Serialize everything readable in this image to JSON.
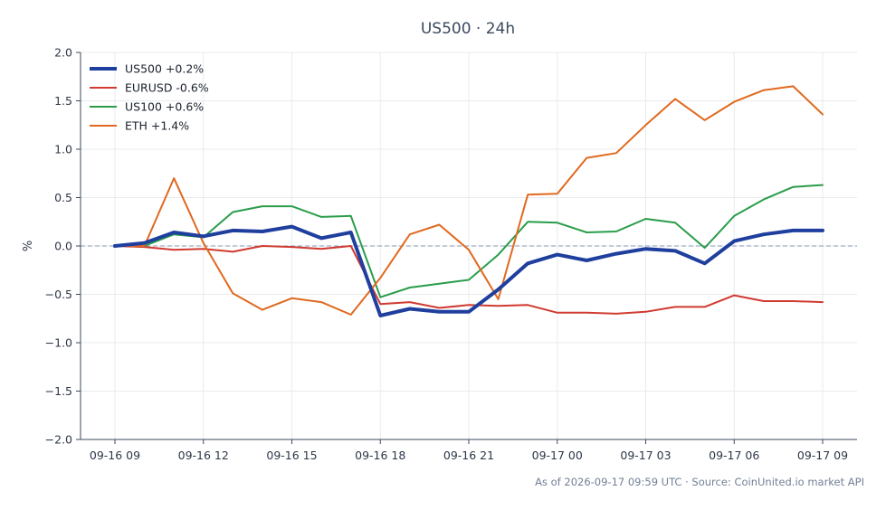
{
  "chart_data": {
    "type": "line",
    "title": "US500 · 24h",
    "ylabel": "%",
    "xlabel": "",
    "ylim": [
      -2.0,
      2.0
    ],
    "yticks": [
      -2.0,
      -1.5,
      -1.0,
      -0.5,
      0.0,
      0.5,
      1.0,
      1.5,
      2.0
    ],
    "ytick_labels": [
      "−2.0",
      "−1.5",
      "−1.0",
      "−0.5",
      "0.0",
      "0.5",
      "1.0",
      "1.5",
      "2.0"
    ],
    "x": [
      0,
      1,
      2,
      3,
      4,
      5,
      6,
      7,
      8,
      9,
      10,
      11,
      12,
      13,
      14,
      15,
      16,
      17,
      18,
      19,
      20,
      21,
      22,
      23,
      24
    ],
    "xticks": [
      0,
      3,
      6,
      9,
      12,
      15,
      18,
      21,
      24
    ],
    "xtick_labels": [
      "09-16 09",
      "09-16 12",
      "09-16 15",
      "09-16 18",
      "09-16 21",
      "09-17 00",
      "09-17 03",
      "09-17 06",
      "09-17 09"
    ],
    "grid": true,
    "zero_line": true,
    "legend_position": "top-left",
    "series": [
      {
        "name": "US500 +0.2%",
        "color": "#1f3f9e",
        "width": 4,
        "values": [
          0.0,
          0.03,
          0.14,
          0.1,
          0.16,
          0.15,
          0.2,
          0.08,
          0.14,
          -0.72,
          -0.65,
          -0.68,
          -0.68,
          -0.45,
          -0.18,
          -0.09,
          -0.15,
          -0.08,
          -0.03,
          -0.05,
          -0.18,
          0.05,
          0.12,
          0.16,
          0.16
        ]
      },
      {
        "name": "EURUSD -0.6%",
        "color": "#d03a30",
        "width": 2,
        "values": [
          0.0,
          -0.01,
          -0.04,
          -0.03,
          -0.06,
          0.0,
          -0.01,
          -0.03,
          0.0,
          -0.6,
          -0.58,
          -0.64,
          -0.61,
          -0.62,
          -0.61,
          -0.69,
          -0.69,
          -0.7,
          -0.68,
          -0.63,
          -0.63,
          -0.51,
          -0.57,
          -0.57,
          -0.58
        ]
      },
      {
        "name": "US100 +0.6%",
        "color": "#2a9d4a",
        "width": 2,
        "values": [
          0.0,
          0.0,
          0.12,
          0.09,
          0.35,
          0.41,
          0.41,
          0.3,
          0.31,
          -0.53,
          -0.43,
          -0.39,
          -0.35,
          -0.09,
          0.25,
          0.24,
          0.14,
          0.15,
          0.28,
          0.24,
          -0.02,
          0.31,
          0.48,
          0.61,
          0.63
        ]
      },
      {
        "name": "ETH +1.4%",
        "color": "#e0691f",
        "width": 2,
        "values": [
          0.0,
          0.0,
          0.7,
          0.03,
          -0.49,
          -0.66,
          -0.54,
          -0.58,
          -0.71,
          -0.33,
          0.12,
          0.22,
          -0.04,
          -0.55,
          0.53,
          0.54,
          0.91,
          0.96,
          1.25,
          1.52,
          1.3,
          1.49,
          1.61,
          1.65,
          1.36
        ]
      }
    ]
  },
  "footnote": "As of 2026-09-17 09:59 UTC · Source: CoinUnited.io market API"
}
